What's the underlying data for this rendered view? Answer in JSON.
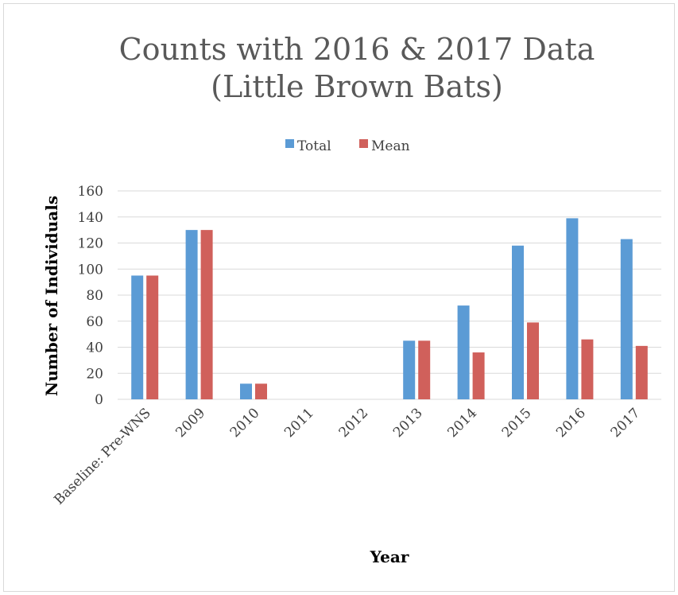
{
  "chart_data": {
    "type": "bar",
    "title_lines": [
      "Counts with 2016 & 2017 Data",
      "(Little Brown Bats)"
    ],
    "xlabel": "Year",
    "ylabel": "Number of Individuals",
    "categories": [
      "Baseline: Pre-WNS",
      "2009",
      "2010",
      "2011",
      "2012",
      "2013",
      "2014",
      "2015",
      "2016",
      "2017"
    ],
    "series": [
      {
        "name": "Total",
        "color": "#5B9BD5",
        "values": [
          95,
          130,
          12,
          0,
          0,
          45,
          72,
          118,
          139,
          123
        ]
      },
      {
        "name": "Mean",
        "color": "#D0605B",
        "values": [
          95,
          130,
          12,
          0,
          0,
          45,
          36,
          59,
          46,
          41
        ]
      }
    ],
    "ylim": [
      0,
      160
    ],
    "yticks": [
      0,
      20,
      40,
      60,
      80,
      100,
      120,
      140,
      160
    ],
    "grid": true,
    "legend_position": "top-center"
  }
}
